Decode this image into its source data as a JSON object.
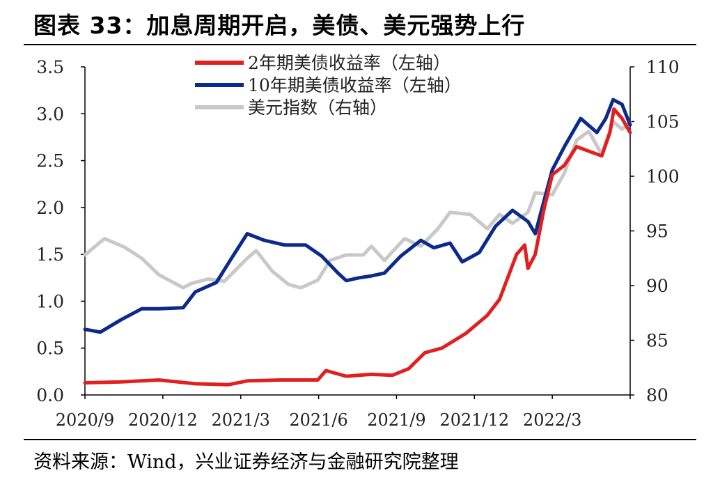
{
  "header": {
    "title": "图表 33：加息周期开启，美债、美元强势上行"
  },
  "footer": {
    "source": "资料来源：Wind，兴业证券经济与金融研究院整理"
  },
  "chart_data": {
    "type": "line",
    "colors": {
      "us2y": "#e02020",
      "us10y": "#0b2a8c",
      "dxy": "#c8c8c8"
    },
    "x_tick_labels": [
      "2020/9",
      "2020/12",
      "2021/3",
      "2021/6",
      "2021/9",
      "2021/12",
      "2022/3"
    ],
    "y_left": {
      "lim": [
        0,
        3.5
      ],
      "ticks": [
        "0.0",
        "0.5",
        "1.0",
        "1.5",
        "2.0",
        "2.5",
        "3.0",
        "3.5"
      ]
    },
    "y_right": {
      "lim": [
        80,
        110
      ],
      "ticks": [
        "80",
        "85",
        "90",
        "95",
        "100",
        "105",
        "110"
      ]
    },
    "x_range": [
      "2020-09-01",
      "2022-07-05"
    ],
    "legend_position": "top-center",
    "grid": false,
    "series": [
      {
        "id": "us2y",
        "name": "2年期美债收益率（左轴）",
        "axis": "left",
        "x": [
          "2020-09-01",
          "2020-10-15",
          "2020-12-01",
          "2021-01-15",
          "2021-02-25",
          "2021-03-20",
          "2021-04-30",
          "2021-06-15",
          "2021-06-25",
          "2021-07-20",
          "2021-08-20",
          "2021-09-15",
          "2021-10-05",
          "2021-10-25",
          "2021-11-15",
          "2021-12-15",
          "2022-01-10",
          "2022-01-25",
          "2022-02-15",
          "2022-02-25",
          "2022-03-01",
          "2022-03-10",
          "2022-03-20",
          "2022-03-31",
          "2022-04-15",
          "2022-04-30",
          "2022-05-15",
          "2022-05-31",
          "2022-06-10",
          "2022-06-15",
          "2022-06-25",
          "2022-07-05"
        ],
        "values": [
          0.13,
          0.14,
          0.16,
          0.12,
          0.11,
          0.15,
          0.16,
          0.16,
          0.26,
          0.2,
          0.22,
          0.21,
          0.28,
          0.45,
          0.5,
          0.66,
          0.85,
          1.02,
          1.5,
          1.6,
          1.35,
          1.5,
          1.95,
          2.35,
          2.45,
          2.65,
          2.6,
          2.55,
          2.8,
          3.05,
          2.95,
          2.8
        ]
      },
      {
        "id": "us10y",
        "name": "10年期美债收益率（左轴）",
        "axis": "left",
        "x": [
          "2020-09-01",
          "2020-09-20",
          "2020-10-15",
          "2020-11-10",
          "2020-12-01",
          "2020-12-31",
          "2021-01-15",
          "2021-02-10",
          "2021-02-28",
          "2021-03-20",
          "2021-04-10",
          "2021-05-05",
          "2021-05-31",
          "2021-06-20",
          "2021-07-10",
          "2021-07-20",
          "2021-08-05",
          "2021-08-20",
          "2021-09-05",
          "2021-09-25",
          "2021-10-20",
          "2021-11-05",
          "2021-11-25",
          "2021-12-10",
          "2021-12-31",
          "2022-01-20",
          "2022-02-10",
          "2022-03-01",
          "2022-03-10",
          "2022-03-31",
          "2022-04-15",
          "2022-05-05",
          "2022-05-25",
          "2022-06-05",
          "2022-06-14",
          "2022-06-25",
          "2022-07-05"
        ],
        "values": [
          0.7,
          0.67,
          0.8,
          0.92,
          0.92,
          0.93,
          1.1,
          1.2,
          1.45,
          1.72,
          1.65,
          1.6,
          1.6,
          1.48,
          1.3,
          1.22,
          1.25,
          1.27,
          1.3,
          1.48,
          1.65,
          1.57,
          1.62,
          1.42,
          1.52,
          1.8,
          1.97,
          1.85,
          1.72,
          2.4,
          2.65,
          2.95,
          2.8,
          2.95,
          3.15,
          3.1,
          2.88
        ]
      },
      {
        "id": "dxy",
        "name": "美元指数（右轴）",
        "axis": "right",
        "x": [
          "2020-09-01",
          "2020-09-25",
          "2020-10-20",
          "2020-11-10",
          "2020-12-01",
          "2020-12-31",
          "2021-01-10",
          "2021-01-31",
          "2021-02-20",
          "2021-03-20",
          "2021-03-31",
          "2021-04-20",
          "2021-05-10",
          "2021-05-25",
          "2021-06-15",
          "2021-06-30",
          "2021-07-20",
          "2021-08-10",
          "2021-08-20",
          "2021-09-05",
          "2021-09-30",
          "2021-10-20",
          "2021-11-10",
          "2021-11-25",
          "2021-12-20",
          "2022-01-10",
          "2022-01-25",
          "2022-02-10",
          "2022-03-01",
          "2022-03-10",
          "2022-03-31",
          "2022-04-15",
          "2022-04-30",
          "2022-05-15",
          "2022-05-31",
          "2022-06-14",
          "2022-06-25",
          "2022-07-05"
        ],
        "values": [
          92.8,
          94.3,
          93.5,
          92.5,
          91.0,
          89.8,
          90.2,
          90.6,
          90.4,
          92.5,
          93.2,
          91.3,
          90.1,
          89.8,
          90.5,
          92.3,
          92.8,
          92.8,
          93.6,
          92.3,
          94.3,
          93.6,
          95.2,
          96.7,
          96.5,
          95.2,
          96.5,
          95.7,
          96.7,
          98.5,
          98.3,
          100.3,
          103.3,
          104.1,
          102.0,
          105.0,
          104.3,
          104.9
        ]
      }
    ]
  }
}
